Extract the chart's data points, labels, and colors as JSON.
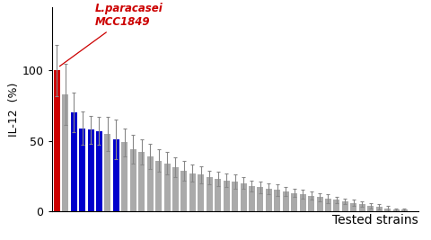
{
  "title": "",
  "ylabel": "IL-12  (%)",
  "xlabel": "Tested strains",
  "annotation_text": "L.paracasei\nMCC1849",
  "annotation_color": "#cc0000",
  "bar_values": [
    100,
    83,
    70,
    59,
    58,
    57,
    55,
    51,
    49,
    44,
    42,
    39,
    36,
    34,
    31,
    29,
    27,
    26,
    24,
    23,
    22,
    21,
    20,
    18,
    17,
    16,
    15,
    14,
    13,
    12,
    11,
    10,
    9,
    8,
    7,
    6,
    5,
    4,
    3,
    2,
    1,
    1,
    0
  ],
  "bar_errors": [
    18,
    22,
    14,
    12,
    10,
    10,
    12,
    14,
    10,
    10,
    9,
    9,
    8,
    8,
    7,
    7,
    6,
    6,
    5,
    5,
    5,
    5,
    4,
    4,
    4,
    4,
    4,
    3,
    3,
    3,
    3,
    3,
    3,
    2,
    2,
    2,
    2,
    2,
    2,
    2,
    1,
    1,
    0
  ],
  "bar_colors": [
    "#cc0000",
    "#aaaaaa",
    "#0000cc",
    "#0000cc",
    "#0000cc",
    "#0000cc",
    "#aaaaaa",
    "#0000cc",
    "#aaaaaa",
    "#aaaaaa",
    "#aaaaaa",
    "#aaaaaa",
    "#aaaaaa",
    "#aaaaaa",
    "#aaaaaa",
    "#aaaaaa",
    "#aaaaaa",
    "#aaaaaa",
    "#aaaaaa",
    "#aaaaaa",
    "#aaaaaa",
    "#aaaaaa",
    "#aaaaaa",
    "#aaaaaa",
    "#aaaaaa",
    "#aaaaaa",
    "#aaaaaa",
    "#aaaaaa",
    "#aaaaaa",
    "#aaaaaa",
    "#aaaaaa",
    "#aaaaaa",
    "#aaaaaa",
    "#aaaaaa",
    "#aaaaaa",
    "#aaaaaa",
    "#aaaaaa",
    "#aaaaaa",
    "#aaaaaa",
    "#aaaaaa",
    "#aaaaaa",
    "#aaaaaa",
    "#aaaaaa"
  ],
  "ylim": [
    0,
    145
  ],
  "yticks": [
    0,
    50,
    100
  ],
  "background_color": "#ffffff",
  "bar_width": 0.75,
  "error_color": "#888888",
  "error_capsize": 1.2,
  "n_bars": 43,
  "figsize": [
    4.8,
    2.67
  ],
  "dpi": 100
}
